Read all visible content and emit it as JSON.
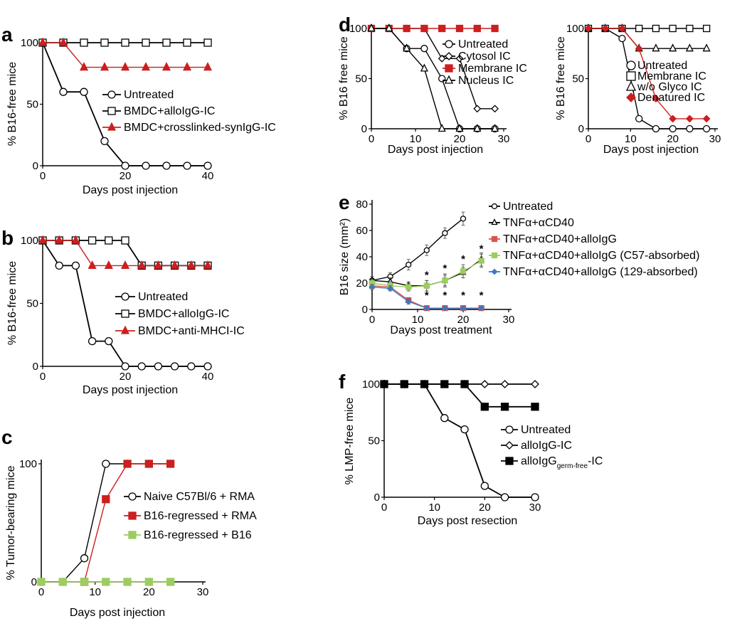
{
  "panels": [
    {
      "id": "a",
      "label": "a",
      "xlabel": "Days post injection",
      "ylabel": "% B16-free mice",
      "xlim": [
        0,
        40
      ],
      "ylim": [
        0,
        100
      ],
      "xticks": [
        "0",
        "20",
        "40"
      ],
      "yticks": [
        "0",
        "50",
        "100"
      ],
      "series": [
        {
          "name": "Untreated",
          "marker": "circle",
          "color": "#000000",
          "x": [
            0,
            5,
            10,
            15,
            20,
            25,
            30,
            35,
            40
          ],
          "y": [
            100,
            60,
            60,
            20,
            0,
            0,
            0,
            0,
            0
          ]
        },
        {
          "name": "BMDC+alloIgG-IC",
          "marker": "square",
          "color": "#000000",
          "x": [
            0,
            5,
            10,
            15,
            20,
            25,
            30,
            35,
            40
          ],
          "y": [
            100,
            100,
            100,
            100,
            100,
            100,
            100,
            100,
            100
          ]
        },
        {
          "name": "BMDC+crosslinked-synIgG-IC",
          "marker": "triangle-filled",
          "color": "#cc1f1f",
          "x": [
            0,
            5,
            10,
            15,
            20,
            25,
            30,
            35,
            40
          ],
          "y": [
            100,
            100,
            80,
            80,
            80,
            80,
            80,
            80,
            80
          ]
        }
      ]
    },
    {
      "id": "b",
      "label": "b",
      "xlabel": "Days post injection",
      "ylabel": "% B16-free mice",
      "xlim": [
        0,
        40
      ],
      "ylim": [
        0,
        100
      ],
      "xticks": [
        "0",
        "20",
        "40"
      ],
      "yticks": [
        "0",
        "50",
        "100"
      ],
      "series": [
        {
          "name": "Untreated",
          "marker": "circle",
          "color": "#000000",
          "x": [
            0,
            4,
            8,
            12,
            16,
            20,
            24,
            28,
            32,
            36,
            40
          ],
          "y": [
            100,
            80,
            80,
            20,
            20,
            0,
            0,
            0,
            0,
            0,
            0
          ]
        },
        {
          "name": "BMDC+alloIgG-IC",
          "marker": "square",
          "color": "#000000",
          "x": [
            0,
            4,
            8,
            12,
            16,
            20,
            24,
            28,
            32,
            36,
            40
          ],
          "y": [
            100,
            100,
            100,
            100,
            100,
            100,
            80,
            80,
            80,
            80,
            80
          ]
        },
        {
          "name": "BMDC+anti-MHCI-IC",
          "marker": "triangle-filled",
          "color": "#cc1f1f",
          "x": [
            0,
            4,
            8,
            12,
            16,
            20,
            24,
            28,
            32,
            36,
            40
          ],
          "y": [
            100,
            100,
            100,
            80,
            80,
            80,
            80,
            80,
            80,
            80,
            80
          ]
        }
      ]
    },
    {
      "id": "c",
      "label": "c",
      "xlabel": "Days post injection",
      "ylabel": "% Tumor-bearing mice",
      "xlim": [
        0,
        30
      ],
      "ylim": [
        0,
        100
      ],
      "xticks": [
        "0",
        "10",
        "20",
        "30"
      ],
      "yticks": [
        "0",
        "100"
      ],
      "series": [
        {
          "name": "Naive C57Bl/6 + RMA",
          "marker": "circle",
          "color": "#000000",
          "x": [
            0,
            4,
            8,
            12,
            16,
            20,
            24
          ],
          "y": [
            0,
            0,
            20,
            100,
            100,
            100,
            100
          ]
        },
        {
          "name": "B16-regressed + RMA",
          "marker": "square-filled",
          "color": "#cc1f1f",
          "x": [
            8,
            12,
            16,
            20,
            24
          ],
          "y": [
            0,
            70,
            100,
            100,
            100
          ]
        },
        {
          "name": "B16-regressed + B16",
          "marker": "square-filled",
          "color": "#9dcc5f",
          "x": [
            0,
            4,
            8,
            12,
            16,
            20,
            24
          ],
          "y": [
            0,
            0,
            0,
            0,
            0,
            0,
            0
          ]
        }
      ]
    },
    {
      "id": "d1",
      "label": "d",
      "xlabel": "Days post injection",
      "ylabel": "% B16 free mice",
      "xlim": [
        0,
        30
      ],
      "ylim": [
        0,
        100
      ],
      "xticks": [
        "0",
        "10",
        "20",
        "30"
      ],
      "yticks": [
        "0",
        "50",
        "100"
      ],
      "series": [
        {
          "name": "Untreated",
          "marker": "circle",
          "color": "#000000",
          "x": [
            0,
            4,
            8,
            12,
            16,
            20,
            24,
            28
          ],
          "y": [
            100,
            100,
            80,
            80,
            50,
            0,
            0,
            0
          ]
        },
        {
          "name": "Cytosol IC",
          "marker": "diamond",
          "color": "#000000",
          "x": [
            0,
            4,
            8,
            12,
            16,
            20,
            24,
            28
          ],
          "y": [
            100,
            100,
            100,
            100,
            70,
            70,
            20,
            20
          ]
        },
        {
          "name": "Membrane IC",
          "marker": "square-filled",
          "color": "#cc1f1f",
          "x": [
            0,
            4,
            8,
            12,
            16,
            20,
            24,
            28
          ],
          "y": [
            100,
            100,
            100,
            100,
            100,
            100,
            100,
            100
          ]
        },
        {
          "name": "Nucleus IC",
          "marker": "triangle",
          "color": "#000000",
          "x": [
            0,
            4,
            8,
            12,
            16,
            20,
            24,
            28
          ],
          "y": [
            100,
            100,
            80,
            60,
            0,
            0,
            0,
            0
          ]
        }
      ]
    },
    {
      "id": "d2",
      "label": "",
      "xlabel": "Days post injection",
      "ylabel": "% B16 free mice",
      "xlim": [
        0,
        30
      ],
      "ylim": [
        0,
        100
      ],
      "xticks": [
        "0",
        "10",
        "20",
        "30"
      ],
      "yticks": [
        "0",
        "50",
        "100"
      ],
      "series": [
        {
          "name": "Untreated",
          "marker": "circle",
          "color": "#000000",
          "x": [
            0,
            4,
            8,
            12,
            16,
            20,
            24,
            28
          ],
          "y": [
            100,
            100,
            90,
            10,
            0,
            0,
            0,
            0
          ]
        },
        {
          "name": "Membrane IC",
          "marker": "square",
          "color": "#000000",
          "x": [
            0,
            4,
            8,
            12,
            16,
            20,
            24,
            28
          ],
          "y": [
            100,
            100,
            100,
            100,
            100,
            100,
            100,
            100
          ]
        },
        {
          "name": "w/o Glyco IC",
          "marker": "triangle",
          "color": "#000000",
          "x": [
            0,
            4,
            8,
            12,
            16,
            20,
            24,
            28
          ],
          "y": [
            100,
            100,
            100,
            80,
            80,
            80,
            80,
            80
          ]
        },
        {
          "name": "Denatured IC",
          "marker": "diamond-filled",
          "color": "#cc1f1f",
          "x": [
            0,
            4,
            8,
            12,
            16,
            20,
            24,
            28
          ],
          "y": [
            100,
            100,
            100,
            80,
            30,
            10,
            10,
            10
          ]
        }
      ]
    },
    {
      "id": "e",
      "label": "e",
      "xlabel": "Days post treatment",
      "ylabel": "B16 size (mm²)",
      "xlim": [
        0,
        30
      ],
      "ylim": [
        0,
        80
      ],
      "xticks": [
        "0",
        "10",
        "20",
        "30"
      ],
      "yticks": [
        "0",
        "20",
        "40",
        "60",
        "80"
      ],
      "annotations": {
        "text": "*",
        "x": [
          12,
          16,
          20,
          24
        ]
      },
      "series": [
        {
          "name": "Untreated",
          "marker": "circle",
          "color": "#000000",
          "x": [
            0,
            4,
            8,
            12,
            16,
            20
          ],
          "y": [
            22,
            25,
            34,
            45,
            58,
            69
          ],
          "err": [
            3,
            3,
            4,
            4,
            4,
            5
          ]
        },
        {
          "name": "TNFα+αCD40",
          "marker": "triangle",
          "color": "#000000",
          "x": [
            0,
            4,
            8,
            12,
            16,
            20,
            24
          ],
          "y": [
            22,
            21,
            18,
            18,
            22,
            28,
            38
          ],
          "err": [
            3,
            3,
            3,
            4,
            4,
            4,
            5
          ]
        },
        {
          "name": "TNFα+αCD40+alloIgG",
          "marker": "square-filled",
          "color": "#d9534f",
          "x": [
            0,
            4,
            8,
            12,
            16,
            20,
            24
          ],
          "y": [
            18,
            17,
            7,
            1,
            1,
            1,
            1
          ],
          "err": [
            2,
            2,
            2,
            1,
            1,
            1,
            1
          ]
        },
        {
          "name": "TNFα+αCD40+alloIgG (C57-absorbed)",
          "marker": "square-filled",
          "color": "#9dcc5f",
          "x": [
            0,
            4,
            8,
            12,
            16,
            20,
            24
          ],
          "y": [
            20,
            18,
            17,
            18,
            22,
            29,
            37
          ],
          "err": [
            3,
            3,
            3,
            4,
            5,
            5,
            5
          ]
        },
        {
          "name": "TNFα+αCD40+alloIgG (129-absorbed)",
          "marker": "diamond-filled",
          "color": "#3b78c4",
          "x": [
            0,
            4,
            8,
            12,
            16,
            20,
            24
          ],
          "y": [
            17,
            16,
            6,
            1,
            1,
            1,
            1
          ],
          "err": [
            2,
            2,
            2,
            1,
            1,
            1,
            1
          ]
        }
      ]
    },
    {
      "id": "f",
      "label": "f",
      "xlabel": "Days post resection",
      "ylabel": "% LMP-free mice",
      "xlim": [
        0,
        30
      ],
      "ylim": [
        0,
        100
      ],
      "xticks": [
        "0",
        "10",
        "20",
        "30"
      ],
      "yticks": [
        "0",
        "50",
        "100"
      ],
      "series": [
        {
          "name": "Untreated",
          "marker": "circle",
          "color": "#000000",
          "x": [
            0,
            4,
            8,
            12,
            16,
            20,
            24,
            30
          ],
          "y": [
            100,
            100,
            100,
            70,
            60,
            10,
            0,
            0
          ]
        },
        {
          "name": "alloIgG-IC",
          "marker": "diamond",
          "color": "#000000",
          "x": [
            0,
            4,
            8,
            12,
            16,
            20,
            24,
            30
          ],
          "y": [
            100,
            100,
            100,
            100,
            100,
            100,
            100,
            100
          ]
        },
        {
          "name": "alloIgGgerm-free-IC",
          "name_main": "alloIgG",
          "name_sub": "germ-free",
          "name_suffix": "-IC",
          "marker": "square-filled",
          "color": "#000000",
          "x": [
            0,
            4,
            8,
            12,
            16,
            20,
            24,
            30
          ],
          "y": [
            100,
            100,
            100,
            100,
            100,
            80,
            80,
            80
          ]
        }
      ]
    }
  ]
}
